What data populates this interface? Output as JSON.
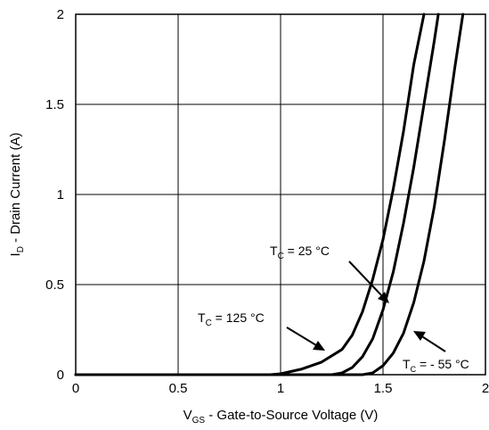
{
  "chart_data": {
    "type": "line",
    "xlim": [
      0,
      2
    ],
    "ylim": [
      0,
      2
    ],
    "grid": true,
    "x_ticks": [
      "0",
      "0.5",
      "1",
      "1.5",
      "2"
    ],
    "y_ticks": [
      "0",
      "0.5",
      "1",
      "1.5",
      "2"
    ],
    "xlabel": {
      "main": "V",
      "sub": "GS",
      "rest": " - Gate-to-Source Voltage (V)"
    },
    "ylabel": {
      "main": "I",
      "sub": "D",
      "rest": " - Drain Current (A)"
    },
    "series": [
      {
        "annotation": {
          "main": "T",
          "sub": "C",
          "rest": " = 125 °C"
        },
        "points": [
          [
            0,
            0
          ],
          [
            0.95,
            0
          ],
          [
            1.0,
            0.005
          ],
          [
            1.1,
            0.03
          ],
          [
            1.2,
            0.07
          ],
          [
            1.3,
            0.14
          ],
          [
            1.35,
            0.22
          ],
          [
            1.4,
            0.35
          ],
          [
            1.45,
            0.53
          ],
          [
            1.5,
            0.75
          ],
          [
            1.55,
            1.03
          ],
          [
            1.6,
            1.35
          ],
          [
            1.65,
            1.72
          ],
          [
            1.7,
            2.0
          ]
        ]
      },
      {
        "annotation": {
          "main": "T",
          "sub": "C",
          "rest": " = 25 °C"
        },
        "points": [
          [
            0,
            0
          ],
          [
            1.25,
            0
          ],
          [
            1.3,
            0.01
          ],
          [
            1.35,
            0.04
          ],
          [
            1.4,
            0.1
          ],
          [
            1.45,
            0.2
          ],
          [
            1.5,
            0.36
          ],
          [
            1.55,
            0.57
          ],
          [
            1.6,
            0.84
          ],
          [
            1.65,
            1.15
          ],
          [
            1.7,
            1.5
          ],
          [
            1.75,
            1.85
          ],
          [
            1.77,
            2.0
          ]
        ]
      },
      {
        "annotation": {
          "main": "T",
          "sub": "C",
          "rest": " = - 55 °C"
        },
        "points": [
          [
            0,
            0
          ],
          [
            1.4,
            0
          ],
          [
            1.45,
            0.01
          ],
          [
            1.5,
            0.05
          ],
          [
            1.55,
            0.12
          ],
          [
            1.6,
            0.23
          ],
          [
            1.65,
            0.4
          ],
          [
            1.7,
            0.63
          ],
          [
            1.75,
            0.93
          ],
          [
            1.8,
            1.3
          ],
          [
            1.85,
            1.7
          ],
          [
            1.89,
            2.0
          ]
        ]
      }
    ]
  }
}
